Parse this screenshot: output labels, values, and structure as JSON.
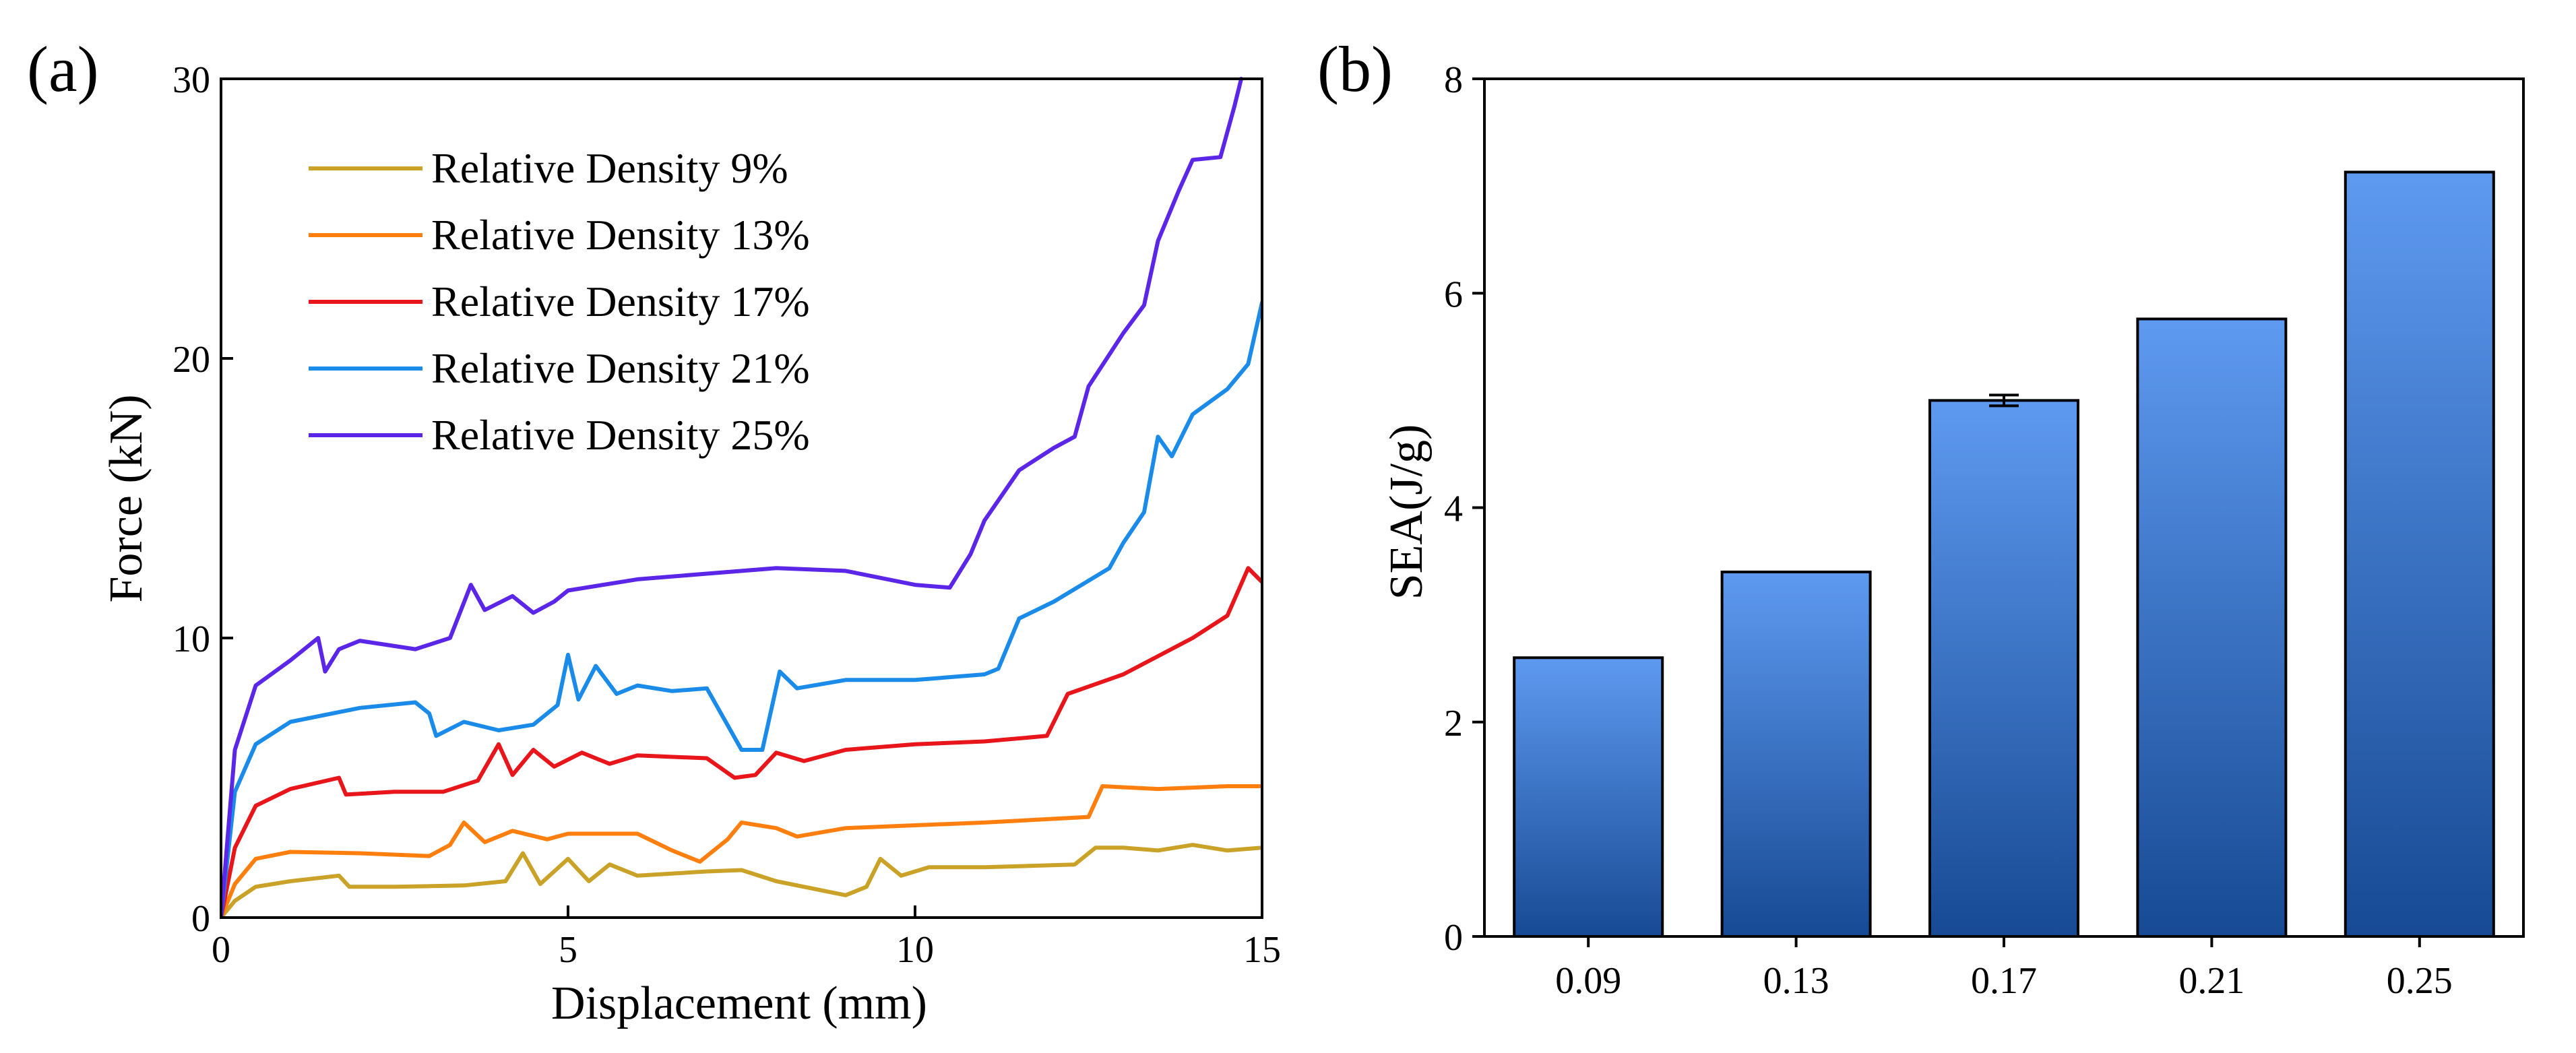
{
  "panels": {
    "a_label": "(a)",
    "b_label": "(b)"
  },
  "chart_data": [
    {
      "type": "line",
      "xlabel": "Displacement (mm)",
      "ylabel": "Force (kN)",
      "xlim": [
        0,
        15
      ],
      "ylim": [
        0,
        30
      ],
      "xticks": [
        0,
        5,
        10,
        15
      ],
      "yticks": [
        0,
        10,
        20,
        30
      ],
      "grid": false,
      "legend_position": "top-left",
      "series": [
        {
          "name": "Relative Density 9%",
          "color": "#C9A227",
          "points": [
            [
              0,
              0
            ],
            [
              0.2,
              0.6
            ],
            [
              0.5,
              1.1
            ],
            [
              1,
              1.3
            ],
            [
              1.7,
              1.5
            ],
            [
              1.85,
              1.1
            ],
            [
              2.5,
              1.1
            ],
            [
              3.5,
              1.15
            ],
            [
              4.1,
              1.3
            ],
            [
              4.35,
              2.3
            ],
            [
              4.6,
              1.2
            ],
            [
              5,
              2.1
            ],
            [
              5.3,
              1.3
            ],
            [
              5.6,
              1.9
            ],
            [
              6,
              1.5
            ],
            [
              7,
              1.65
            ],
            [
              7.5,
              1.7
            ],
            [
              8,
              1.3
            ],
            [
              9,
              0.8
            ],
            [
              9.3,
              1.1
            ],
            [
              9.5,
              2.1
            ],
            [
              9.8,
              1.5
            ],
            [
              10.2,
              1.8
            ],
            [
              11,
              1.8
            ],
            [
              12.3,
              1.9
            ],
            [
              12.6,
              2.5
            ],
            [
              13,
              2.5
            ],
            [
              13.5,
              2.4
            ],
            [
              14,
              2.6
            ],
            [
              14.5,
              2.4
            ],
            [
              15,
              2.5
            ]
          ]
        },
        {
          "name": "Relative Density 13%",
          "color": "#FF7F0E",
          "points": [
            [
              0,
              0
            ],
            [
              0.2,
              1.2
            ],
            [
              0.5,
              2.1
            ],
            [
              1,
              2.35
            ],
            [
              2,
              2.3
            ],
            [
              3,
              2.2
            ],
            [
              3.3,
              2.6
            ],
            [
              3.5,
              3.4
            ],
            [
              3.8,
              2.7
            ],
            [
              4.2,
              3.1
            ],
            [
              4.7,
              2.8
            ],
            [
              5,
              3.0
            ],
            [
              6,
              3.0
            ],
            [
              6.5,
              2.4
            ],
            [
              6.9,
              2.0
            ],
            [
              7.3,
              2.8
            ],
            [
              7.5,
              3.4
            ],
            [
              8,
              3.2
            ],
            [
              8.3,
              2.9
            ],
            [
              9,
              3.2
            ],
            [
              10,
              3.3
            ],
            [
              11,
              3.4
            ],
            [
              12.5,
              3.6
            ],
            [
              12.7,
              4.7
            ],
            [
              13.5,
              4.6
            ],
            [
              14.5,
              4.7
            ],
            [
              15,
              4.7
            ]
          ]
        },
        {
          "name": "Relative Density 17%",
          "color": "#E8151B",
          "points": [
            [
              0,
              0
            ],
            [
              0.2,
              2.5
            ],
            [
              0.5,
              4.0
            ],
            [
              1,
              4.6
            ],
            [
              1.7,
              5.0
            ],
            [
              1.8,
              4.4
            ],
            [
              2.5,
              4.5
            ],
            [
              3.2,
              4.5
            ],
            [
              3.7,
              4.9
            ],
            [
              4,
              6.2
            ],
            [
              4.2,
              5.1
            ],
            [
              4.5,
              6.0
            ],
            [
              4.8,
              5.4
            ],
            [
              5.2,
              5.9
            ],
            [
              5.6,
              5.5
            ],
            [
              6,
              5.8
            ],
            [
              7,
              5.7
            ],
            [
              7.4,
              5.0
            ],
            [
              7.7,
              5.1
            ],
            [
              8,
              5.9
            ],
            [
              8.4,
              5.6
            ],
            [
              9,
              6.0
            ],
            [
              10,
              6.2
            ],
            [
              11,
              6.3
            ],
            [
              11.9,
              6.5
            ],
            [
              12.2,
              8.0
            ],
            [
              13,
              8.7
            ],
            [
              14,
              10.0
            ],
            [
              14.5,
              10.8
            ],
            [
              14.8,
              12.5
            ],
            [
              15,
              12.0
            ]
          ]
        },
        {
          "name": "Relative Density 21%",
          "color": "#1A8BE8",
          "points": [
            [
              0,
              0
            ],
            [
              0.2,
              4.5
            ],
            [
              0.5,
              6.2
            ],
            [
              1,
              7.0
            ],
            [
              2,
              7.5
            ],
            [
              2.8,
              7.7
            ],
            [
              3,
              7.3
            ],
            [
              3.1,
              6.5
            ],
            [
              3.5,
              7.0
            ],
            [
              4,
              6.7
            ],
            [
              4.5,
              6.9
            ],
            [
              4.85,
              7.6
            ],
            [
              5.0,
              9.4
            ],
            [
              5.15,
              7.8
            ],
            [
              5.4,
              9.0
            ],
            [
              5.7,
              8.0
            ],
            [
              6,
              8.3
            ],
            [
              6.5,
              8.1
            ],
            [
              7,
              8.2
            ],
            [
              7.5,
              6.0
            ],
            [
              7.8,
              6.0
            ],
            [
              8.05,
              8.8
            ],
            [
              8.3,
              8.2
            ],
            [
              9,
              8.5
            ],
            [
              10,
              8.5
            ],
            [
              11,
              8.7
            ],
            [
              11.2,
              8.9
            ],
            [
              11.5,
              10.7
            ],
            [
              12,
              11.3
            ],
            [
              12.8,
              12.5
            ],
            [
              13,
              13.4
            ],
            [
              13.3,
              14.5
            ],
            [
              13.5,
              17.2
            ],
            [
              13.7,
              16.5
            ],
            [
              14,
              18.0
            ],
            [
              14.5,
              18.9
            ],
            [
              14.8,
              19.8
            ],
            [
              15,
              22.0
            ]
          ]
        },
        {
          "name": "Relative Density 25%",
          "color": "#5B26E8",
          "points": [
            [
              0,
              0
            ],
            [
              0.2,
              6.0
            ],
            [
              0.5,
              8.3
            ],
            [
              1,
              9.2
            ],
            [
              1.4,
              10.0
            ],
            [
              1.5,
              8.8
            ],
            [
              1.7,
              9.6
            ],
            [
              2,
              9.9
            ],
            [
              2.8,
              9.6
            ],
            [
              3.3,
              10.0
            ],
            [
              3.6,
              11.9
            ],
            [
              3.8,
              11.0
            ],
            [
              4.2,
              11.5
            ],
            [
              4.5,
              10.9
            ],
            [
              4.8,
              11.3
            ],
            [
              5,
              11.7
            ],
            [
              6,
              12.1
            ],
            [
              7,
              12.3
            ],
            [
              8,
              12.5
            ],
            [
              9,
              12.4
            ],
            [
              10,
              11.9
            ],
            [
              10.5,
              11.8
            ],
            [
              10.8,
              13.0
            ],
            [
              11,
              14.2
            ],
            [
              11.5,
              16.0
            ],
            [
              12,
              16.8
            ],
            [
              12.3,
              17.2
            ],
            [
              12.5,
              19.0
            ],
            [
              13,
              20.9
            ],
            [
              13.3,
              21.9
            ],
            [
              13.5,
              24.2
            ],
            [
              13.8,
              26.0
            ],
            [
              14,
              27.1
            ],
            [
              14.4,
              27.2
            ],
            [
              14.6,
              29.0
            ],
            [
              14.7,
              30.0
            ]
          ]
        }
      ]
    },
    {
      "type": "bar",
      "categories": [
        "0.09",
        "0.13",
        "0.17",
        "0.21",
        "0.25"
      ],
      "values": [
        2.6,
        3.4,
        5.0,
        5.76,
        7.13
      ],
      "error": [
        0,
        0,
        0.05,
        0,
        0
      ],
      "xlabel": "",
      "ylabel": "SEA(J/g)",
      "ylim": [
        0,
        8
      ],
      "yticks": [
        0,
        2,
        4,
        6,
        8
      ],
      "grid": false,
      "bar_color_top": "#5E9AF0",
      "bar_color_bottom": "#174A94"
    }
  ]
}
